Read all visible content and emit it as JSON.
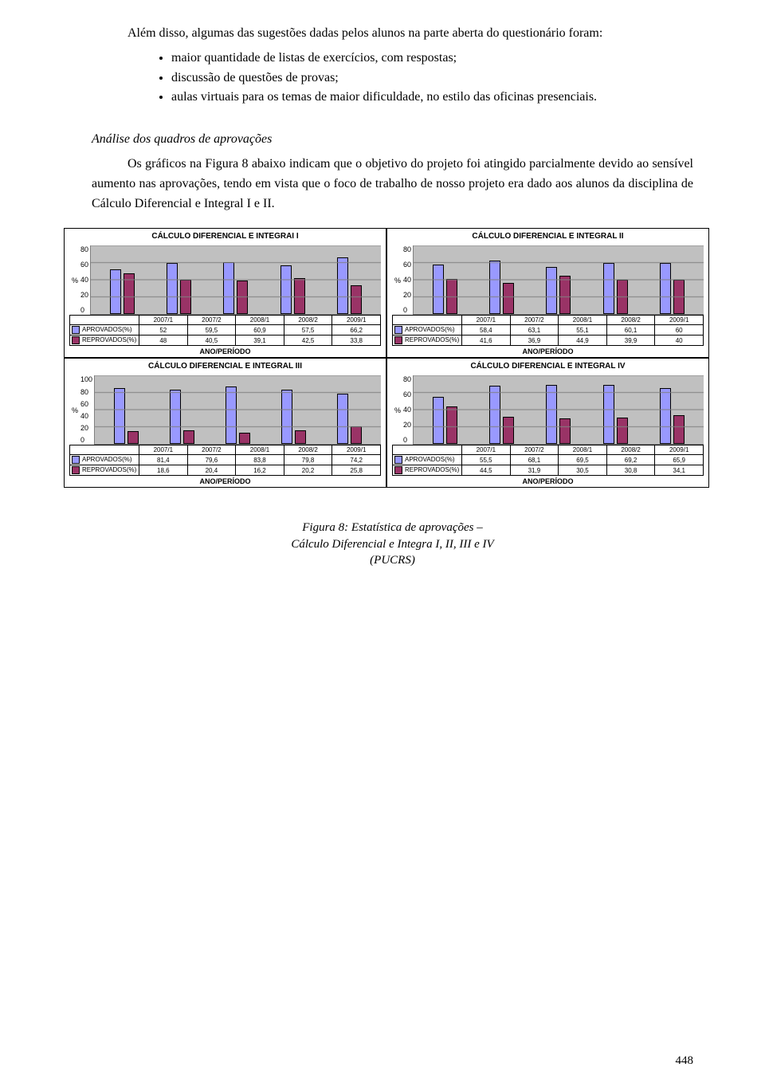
{
  "text": {
    "p1": "Além disso, algumas das sugestões dadas pelos alunos na parte aberta do questionário foram:",
    "bullets": [
      "maior quantidade de listas de exercícios, com respostas;",
      "discussão de questões de provas;",
      "aulas virtuais para os temas de maior dificuldade, no estilo das oficinas presenciais."
    ],
    "analysis_heading": "Análise dos quadros de aprovações",
    "p2": "Os gráficos na Figura 8 abaixo indicam que o objetivo do projeto foi atingido parcialmente devido ao sensível aumento nas aprovações, tendo em vista que o foco de trabalho de nosso projeto era dado aos alunos da disciplina de Cálculo Diferencial e Integral I e II.",
    "figure_caption_l1": "Figura 8: Estatística de aprovações –",
    "figure_caption_l2": "Cálculo Diferencial e Integra I, II, III e IV",
    "figure_caption_l3": "(PUCRS)",
    "page_number": "448"
  },
  "chart_common": {
    "categories": [
      "2007/1",
      "2007/2",
      "2008/1",
      "2008/2",
      "2009/1"
    ],
    "series_labels": {
      "approved": "APROVADOS(%)",
      "failed": "REPROVADOS(%)"
    },
    "y_ticks": [
      "80",
      "60",
      "40",
      "20",
      "0"
    ],
    "y_unit": "%",
    "ymax": 80,
    "axis_label": "ANO/PERÍODO",
    "colors": {
      "approved": "#9999ff",
      "failed": "#993366",
      "plot_bg": "#c0c0c0",
      "grid": "#808080",
      "border": "#000000",
      "background": "#ffffff"
    },
    "fontsize": {
      "title": 10,
      "axis_label": 9,
      "ticks": 9,
      "table": 8
    }
  },
  "charts": {
    "c1": {
      "title": "CÁLCULO DIFERENCIAL E INTEGRAI I",
      "approved": [
        52,
        59.5,
        60.9,
        57.5,
        66.2
      ],
      "failed": [
        48,
        40.5,
        39.1,
        42.5,
        33.8
      ],
      "approved_str": [
        "52",
        "59,5",
        "60,9",
        "57,5",
        "66,2"
      ],
      "failed_str": [
        "48",
        "40,5",
        "39,1",
        "42,5",
        "33,8"
      ]
    },
    "c2": {
      "title": "CÁLCULO DIFERENCIAL E INTEGRAL II",
      "approved": [
        58.4,
        63.1,
        55.1,
        60.1,
        60
      ],
      "failed": [
        41.6,
        36.9,
        44.9,
        39.9,
        40
      ],
      "approved_str": [
        "58,4",
        "63,1",
        "55,1",
        "60,1",
        "60"
      ],
      "failed_str": [
        "41,6",
        "36,9",
        "44,9",
        "39,9",
        "40"
      ]
    },
    "c3": {
      "title": "CÁLCULO DIFERENCIAL E INTEGRAL III",
      "approved": [
        81.4,
        79.6,
        83.8,
        79.8,
        74.2
      ],
      "failed": [
        18.6,
        20.4,
        16.2,
        20.2,
        25.8
      ],
      "approved_str": [
        "81,4",
        "79,6",
        "83,8",
        "79,8",
        "74,2"
      ],
      "failed_str": [
        "18,6",
        "20,4",
        "16,2",
        "20,2",
        "25,8"
      ],
      "ymax": 100,
      "y_ticks": [
        "100",
        "80",
        "60",
        "40",
        "20",
        "0"
      ]
    },
    "c4": {
      "title": "CÁLCULO DIFERENCIAL E INTEGRAL IV",
      "approved": [
        55.5,
        68.1,
        69.5,
        69.2,
        65.9
      ],
      "failed": [
        44.5,
        31.9,
        30.5,
        30.8,
        34.1
      ],
      "approved_str": [
        "55,5",
        "68,1",
        "69,5",
        "69,2",
        "65,9"
      ],
      "failed_str": [
        "44,5",
        "31,9",
        "30,5",
        "30,8",
        "34,1"
      ]
    }
  }
}
